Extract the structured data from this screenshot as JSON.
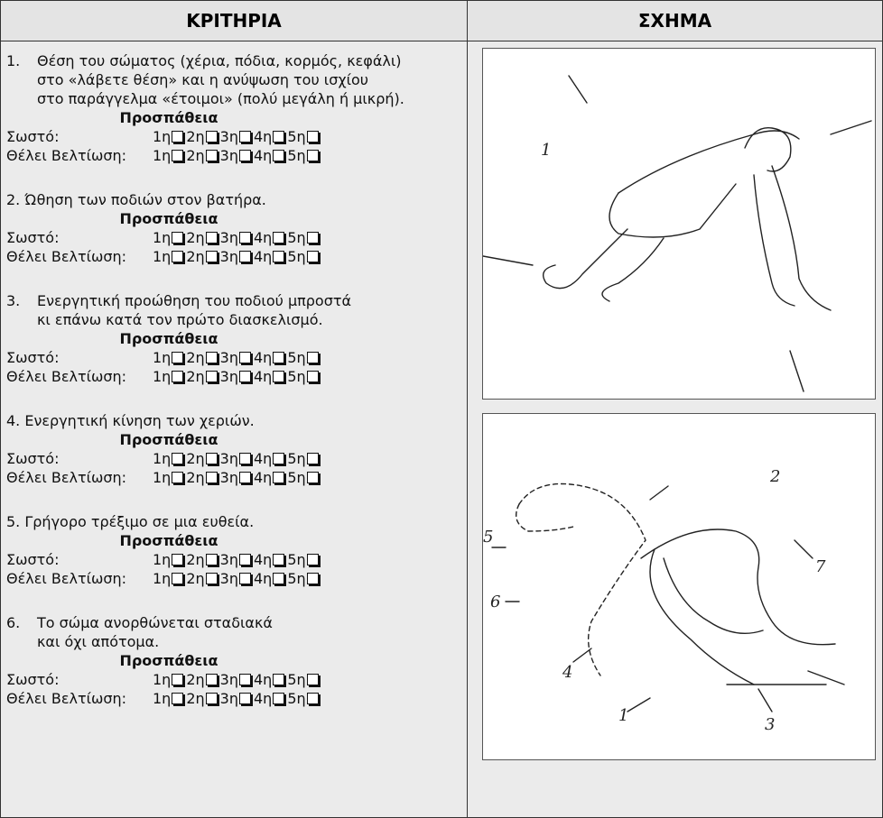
{
  "header": {
    "columns": [
      "ΚΡΙΤΗΡΙΑ",
      "ΣΧΗΜΑ"
    ]
  },
  "criteria": [
    {
      "number": "1.",
      "lines": [
        "Θέση του σώματος (χέρια, πόδια, κορμός, κεφάλι)",
        "στο «λάβετε θέση» και η ανύψωση του ισχίου",
        "στο παράγγελμα «έτοιμοι» (πολύ μεγάλη ή μικρή)."
      ],
      "attempt_heading": "Προσπάθεια",
      "rows": [
        {
          "label": "Σωστό:",
          "attempts": [
            "1η",
            "2η",
            "3η",
            "4η",
            "5η"
          ]
        },
        {
          "label": "Θέλει Βελτίωση:",
          "attempts": [
            "1η",
            "2η",
            "3η",
            "4η",
            "5η"
          ]
        }
      ]
    },
    {
      "number": "2.",
      "lines": [
        "Ώθηση των ποδιών στον βατήρα."
      ],
      "attempt_heading": "Προσπάθεια",
      "rows": [
        {
          "label": "Σωστό:",
          "attempts": [
            "1η",
            "2η",
            "3η",
            "4η",
            "5η"
          ]
        },
        {
          "label": "Θέλει Βελτίωση:",
          "attempts": [
            "1η",
            "2η",
            "3η",
            "4η",
            "5η"
          ]
        }
      ]
    },
    {
      "number": "3.",
      "lines": [
        "Ενεργητική προώθηση του ποδιού μπροστά",
        "κι επάνω κατά τον πρώτο διασκελισμό."
      ],
      "attempt_heading": "Προσπάθεια",
      "rows": [
        {
          "label": "Σωστό:",
          "attempts": [
            "1η",
            "2η",
            "3η",
            "4η",
            "5η"
          ]
        },
        {
          "label": "Θέλει Βελτίωση:",
          "attempts": [
            "1η",
            "2η",
            "3η",
            "4η",
            "5η"
          ]
        }
      ]
    },
    {
      "number": "4.",
      "lines": [
        "Ενεργητική κίνηση των χεριών."
      ],
      "attempt_heading": "Προσπάθεια",
      "rows": [
        {
          "label": "Σωστό:",
          "attempts": [
            "1η",
            "2η",
            "3η",
            "4η",
            "5η"
          ]
        },
        {
          "label": "Θέλει Βελτίωση:",
          "attempts": [
            "1η",
            "2η",
            "3η",
            "4η",
            "5η"
          ]
        }
      ]
    },
    {
      "number": "5.",
      "lines": [
        "Γρήγορο τρέξιμο σε μια ευθεία."
      ],
      "attempt_heading": "Προσπάθεια",
      "rows": [
        {
          "label": "Σωστό:",
          "attempts": [
            "1η",
            "2η",
            "3η",
            "4η",
            "5η"
          ]
        },
        {
          "label": "Θέλει Βελτίωση:",
          "attempts": [
            "1η",
            "2η",
            "3η",
            "4η",
            "5η"
          ]
        }
      ]
    },
    {
      "number": "6.",
      "lines": [
        "Το σώμα ανορθώνεται σταδιακά",
        "και όχι απότομα."
      ],
      "attempt_heading": "Προσπάθεια",
      "rows": [
        {
          "label": "Σωστό:",
          "attempts": [
            "1η",
            "2η",
            "3η",
            "4η",
            "5η"
          ]
        },
        {
          "label": "Θέλει Βελτίωση:",
          "attempts": [
            "1η",
            "2η",
            "3η",
            "4η",
            "5η"
          ]
        }
      ]
    }
  ],
  "figures": [
    {
      "labels": [
        "1"
      ]
    },
    {
      "labels": [
        "2",
        "5",
        "7",
        "6",
        "4",
        "1",
        "3"
      ]
    }
  ]
}
